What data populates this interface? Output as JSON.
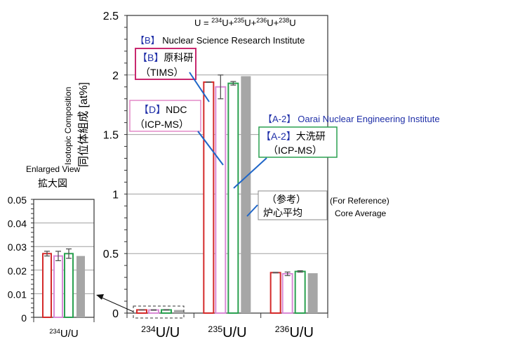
{
  "chart_data": [
    {
      "type": "bar",
      "title": "",
      "ylabel": "Isotopic Composition",
      "ylabel_ja": "同位体組成 [at%]",
      "ylim": [
        0,
        2.5
      ],
      "yticks": [
        "0",
        "0.5",
        "1",
        "1.5",
        "2",
        "2.5"
      ],
      "categories": [
        "234U/U",
        "235U/U",
        "236U/U"
      ],
      "category_labels": [
        {
          "sup": "234",
          "base": "U/U"
        },
        {
          "sup": "235",
          "base": "U/U"
        },
        {
          "sup": "236",
          "base": "U/U"
        }
      ],
      "grid": true,
      "series": [
        {
          "name": "[B] Nuclear Science Research Institute (TIMS)",
          "color": "#d42a2a",
          "fill": "none",
          "values": [
            0.027,
            1.94,
            0.34
          ],
          "errors": [
            0.001,
            0.002,
            0.002
          ]
        },
        {
          "name": "[D] NDC (ICP-MS)",
          "color": "#d98ad6",
          "fill": "none",
          "values": [
            0.026,
            1.9,
            0.33
          ],
          "errors": [
            0.002,
            0.1,
            0.015
          ]
        },
        {
          "name": "[A-2] Oarai Nuclear Engineering Institute (ICP-MS)",
          "color": "#2aa050",
          "fill": "none",
          "values": [
            0.027,
            1.93,
            0.35
          ],
          "errors": [
            0.002,
            0.015,
            0.006
          ]
        },
        {
          "name": "Core Average (For Reference)",
          "color": "#a6a6a6",
          "fill": "solid",
          "values": [
            0.026,
            1.99,
            0.335
          ],
          "errors": [
            0,
            0,
            0
          ]
        }
      ]
    },
    {
      "type": "bar",
      "title": "Enlarged View",
      "title_ja": "拡大図",
      "ylim": [
        0,
        0.05
      ],
      "yticks": [
        "0",
        "0.01",
        "0.02",
        "0.03",
        "0.04",
        "0.05"
      ],
      "categories": [
        "234U/U"
      ],
      "category_labels": [
        {
          "sup": "234",
          "base": "U/U"
        }
      ],
      "grid": true,
      "series": [
        {
          "name": "[B] TIMS",
          "color": "#d42a2a",
          "values": [
            0.027
          ],
          "errors": [
            0.001
          ]
        },
        {
          "name": "[D] NDC",
          "color": "#d98ad6",
          "values": [
            0.026
          ],
          "errors": [
            0.002
          ]
        },
        {
          "name": "[A-2] ICP-MS",
          "color": "#2aa050",
          "values": [
            0.027
          ],
          "errors": [
            0.002
          ]
        },
        {
          "name": "Core Average",
          "color": "#a6a6a6",
          "values": [
            0.026
          ],
          "errors": [
            0
          ]
        }
      ]
    }
  ],
  "annotations": {
    "formula": {
      "lead": "U = ",
      "parts": [
        {
          "sup": "234",
          "base": "U+"
        },
        {
          "sup": "235",
          "base": "U+"
        },
        {
          "sup": "236",
          "base": "U+"
        },
        {
          "sup": "238",
          "base": "U"
        }
      ]
    },
    "b_en": {
      "tag": "【B】",
      "text": " Nuclear Science Research Institute"
    },
    "b_box": {
      "tag": "【B】",
      "name": "原科研",
      "method": "（TIMS）"
    },
    "d_box": {
      "tag": "【D】",
      "name": "NDC",
      "method": "（ICP-MS）"
    },
    "a2_en": {
      "tag": "【A-2】",
      "text": "Oarai Nuclear Engineering Institute"
    },
    "a2_box": {
      "tag": "【A-2】",
      "name": "大洗研",
      "method": "（ICP-MS）"
    },
    "ref_box": {
      "line1": "（参考）",
      "line2": "炉心平均"
    },
    "ref_en": {
      "line1": "(For Reference)",
      "line2": "Core Average"
    }
  },
  "colors": {
    "tag_blue": "#1f2fa8",
    "leader": "#1f66c8",
    "grid": "#a0a0a0"
  }
}
